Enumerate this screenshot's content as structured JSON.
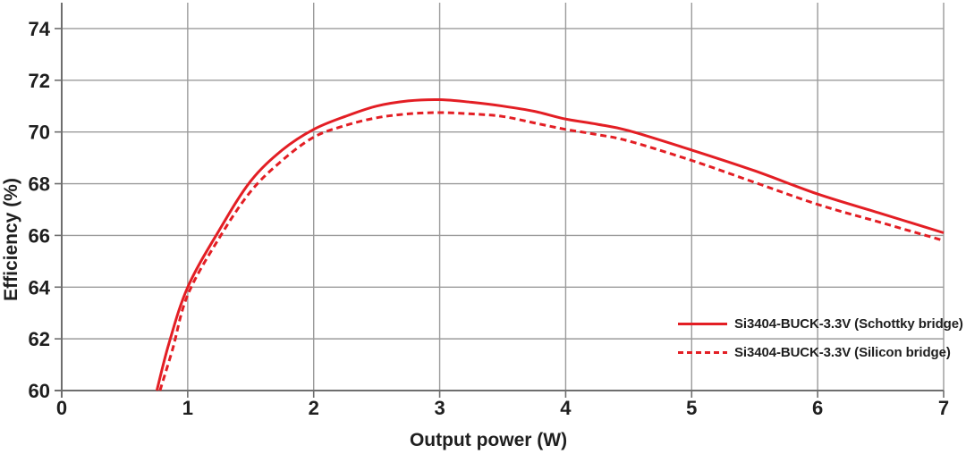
{
  "chart_data": {
    "type": "line",
    "title": "",
    "xlabel": "Output power (W)",
    "ylabel": "Efficiency (%)",
    "xlim": [
      0,
      7
    ],
    "ylim": [
      60,
      75
    ],
    "x_ticks": [
      0,
      1,
      2,
      3,
      4,
      5,
      6,
      7
    ],
    "y_ticks": [
      60,
      62,
      64,
      66,
      68,
      70,
      72,
      74
    ],
    "grid": true,
    "legend_position": "inside lower right",
    "colors": {
      "line": "#e31e24",
      "grid": "#9b9b9b",
      "axis": "#6e6e6e",
      "text": "#1f1f1f",
      "background": "#ffffff"
    },
    "series": [
      {
        "name": "Si3404-BUCK-3.3V (Schottky bridge)",
        "line_style": "solid",
        "x": [
          0.755,
          0.85,
          1.0,
          1.25,
          1.5,
          1.75,
          2.0,
          2.25,
          2.5,
          2.75,
          3.0,
          3.25,
          3.5,
          3.75,
          4.0,
          4.25,
          4.5,
          5.0,
          5.5,
          6.0,
          6.5,
          7.0
        ],
        "y": [
          60.0,
          61.8,
          64.0,
          66.2,
          68.1,
          69.3,
          70.1,
          70.6,
          71.0,
          71.2,
          71.25,
          71.15,
          71.0,
          70.8,
          70.5,
          70.3,
          70.05,
          69.3,
          68.5,
          67.6,
          66.85,
          66.1
        ]
      },
      {
        "name": "Si3404-BUCK-3.3V (Silicon bridge)",
        "line_style": "dashed",
        "x": [
          0.78,
          0.88,
          1.0,
          1.25,
          1.5,
          1.75,
          2.0,
          2.25,
          2.5,
          2.75,
          3.0,
          3.25,
          3.5,
          3.75,
          4.0,
          4.25,
          4.5,
          5.0,
          5.5,
          6.0,
          6.5,
          7.0
        ],
        "y": [
          60.0,
          61.6,
          63.7,
          65.9,
          67.7,
          68.9,
          69.8,
          70.25,
          70.55,
          70.7,
          70.75,
          70.7,
          70.6,
          70.35,
          70.1,
          69.9,
          69.65,
          68.9,
          68.05,
          67.2,
          66.5,
          65.8
        ]
      }
    ]
  }
}
